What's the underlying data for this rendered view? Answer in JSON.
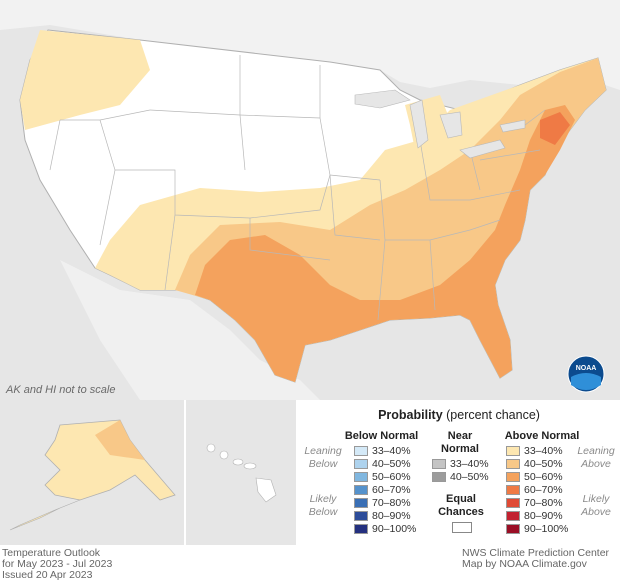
{
  "map": {
    "scale_note": "AK and HI not to scale"
  },
  "legend": {
    "title_bold": "Probability",
    "title_rest": " (percent chance)",
    "below_header": "Below Normal",
    "near_header_1": "Near",
    "near_header_2": "Normal",
    "above_header": "Above Normal",
    "equal_1": "Equal",
    "equal_2": "Chances",
    "leaning_below_1": "Leaning",
    "leaning_below_2": "Below",
    "likely_below_1": "Likely",
    "likely_below_2": "Below",
    "leaning_above_1": "Leaning",
    "leaning_above_2": "Above",
    "likely_above_1": "Likely",
    "likely_above_2": "Above",
    "below": [
      {
        "label": "33–40%",
        "color": "#d4e9f7"
      },
      {
        "label": "40–50%",
        "color": "#aed3ee"
      },
      {
        "label": "50–60%",
        "color": "#80b7e0"
      },
      {
        "label": "60–70%",
        "color": "#5592cc"
      },
      {
        "label": "70–80%",
        "color": "#3a6fb5"
      },
      {
        "label": "80–90%",
        "color": "#2d4d9a"
      },
      {
        "label": "90–100%",
        "color": "#24307f"
      }
    ],
    "near": [
      {
        "label": "33–40%",
        "color": "#c4c4c4"
      },
      {
        "label": "40–50%",
        "color": "#9c9c9c"
      }
    ],
    "above": [
      {
        "label": "33–40%",
        "color": "#fde7b1"
      },
      {
        "label": "40–50%",
        "color": "#f8c888"
      },
      {
        "label": "50–60%",
        "color": "#f4a25d"
      },
      {
        "label": "60–70%",
        "color": "#ef7a45"
      },
      {
        "label": "70–80%",
        "color": "#e04a35"
      },
      {
        "label": "80–90%",
        "color": "#c22130"
      },
      {
        "label": "90–100%",
        "color": "#9a0e25"
      }
    ]
  },
  "footer": {
    "left_1": "Temperature Outlook",
    "left_2": "for May 2023 - Jul 2023",
    "left_3": "Issued 20 Apr 2023",
    "right_1": "NWS Climate Prediction Center",
    "right_2": "Map by NOAA Climate.gov"
  }
}
